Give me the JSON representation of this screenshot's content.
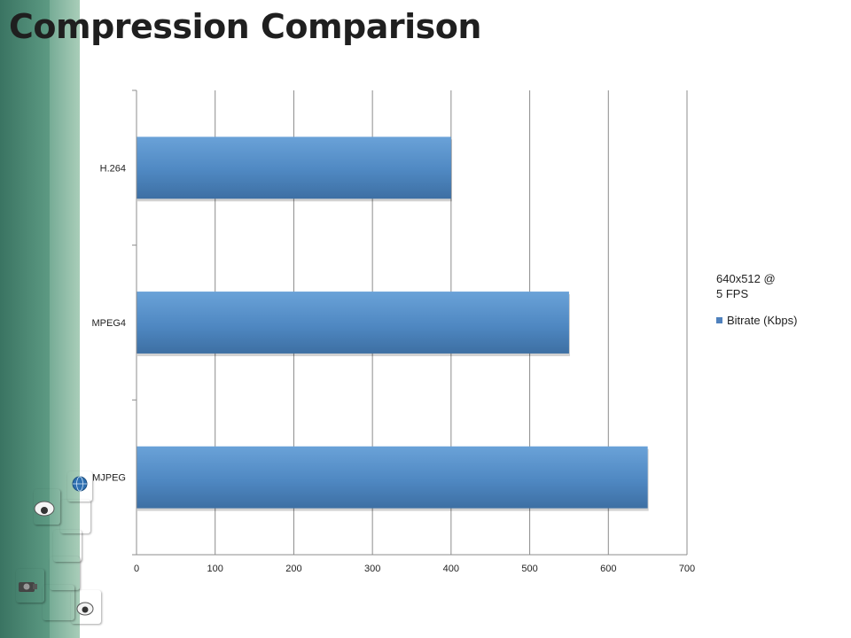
{
  "slide": {
    "title": "Compression Comparison"
  },
  "chart_data": {
    "type": "bar",
    "orientation": "horizontal",
    "categories": [
      "H.264",
      "MPEG4",
      "MJPEG"
    ],
    "series": [
      {
        "name": "Bitrate (Kbps)",
        "values": [
          400,
          550,
          650
        ],
        "color": "#4f81bd"
      }
    ],
    "legend_title": "640x512 @ 5 FPS",
    "legend_title_lines": [
      "640x512 @",
      "5 FPS"
    ],
    "xlim": [
      0,
      700
    ],
    "xticks": [
      "0",
      "100",
      "200",
      "300",
      "400",
      "500",
      "600",
      "700"
    ],
    "grid": true,
    "legend_position": "right"
  },
  "decor": {
    "band_colors": [
      "#3f7a66",
      "#5f9d86",
      "#a9cdb9"
    ],
    "tile_colors": [
      "#d8d9a0",
      "#b9c77a",
      "#7fb39c",
      "#5b9b8c"
    ],
    "icons": [
      "camera-icon",
      "dome-camera-icon",
      "globe-logo-icon"
    ]
  }
}
